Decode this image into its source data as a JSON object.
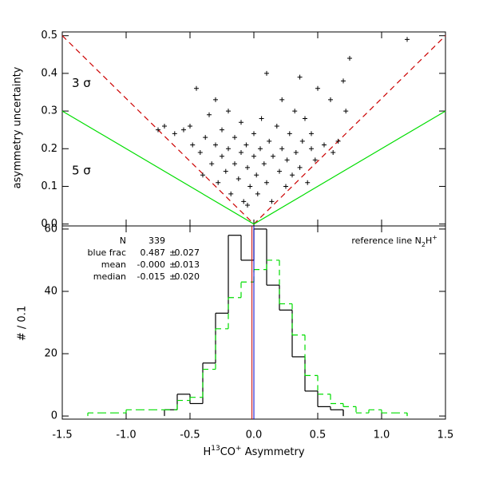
{
  "chart_data": [
    {
      "type": "scatter",
      "ylabel": "asymmetry uncertainty",
      "xlim": [
        -1.5,
        1.5
      ],
      "ylim": [
        -0.005,
        0.51
      ],
      "yticks": [
        {
          "value": 0,
          "label": "0.0"
        },
        0.1,
        0.2,
        0.3,
        0.4,
        0.5
      ],
      "series": [
        {
          "color": "#000000",
          "x": [
            -0.45,
            -0.5,
            -0.55,
            -0.48,
            -0.42,
            -0.4,
            -0.38,
            -0.35,
            -0.33,
            -0.3,
            -0.3,
            -0.28,
            -0.25,
            -0.25,
            -0.22,
            -0.2,
            -0.2,
            -0.18,
            -0.15,
            -0.15,
            -0.12,
            -0.1,
            -0.1,
            -0.08,
            -0.06,
            -0.05,
            -0.03,
            0,
            0,
            0.02,
            0.03,
            0.05,
            0.06,
            0.08,
            0.1,
            0.1,
            0.12,
            0.14,
            0.15,
            0.18,
            0.2,
            0.22,
            0.22,
            0.25,
            0.26,
            0.28,
            0.3,
            0.32,
            0.33,
            0.36,
            0.36,
            0.38,
            0.4,
            0.42,
            0.45,
            0.48,
            0.5,
            0.55,
            0.6,
            0.62,
            0.66,
            0.7,
            0.72,
            0.75,
            1.2,
            -0.7,
            -0.62,
            -0.75,
            0.45,
            -0.05
          ],
          "y": [
            0.36,
            0.26,
            0.25,
            0.21,
            0.19,
            0.13,
            0.23,
            0.29,
            0.16,
            0.33,
            0.21,
            0.11,
            0.25,
            0.18,
            0.14,
            0.3,
            0.2,
            0.08,
            0.23,
            0.16,
            0.12,
            0.27,
            0.19,
            0.06,
            0.21,
            0.15,
            0.1,
            0.24,
            0.18,
            0.13,
            0.08,
            0.2,
            0.28,
            0.16,
            0.4,
            0.11,
            0.22,
            0.06,
            0.18,
            0.26,
            0.14,
            0.33,
            0.2,
            0.1,
            0.17,
            0.24,
            0.13,
            0.3,
            0.19,
            0.39,
            0.15,
            0.22,
            0.28,
            0.11,
            0.2,
            0.17,
            0.36,
            0.21,
            0.33,
            0.19,
            0.22,
            0.38,
            0.3,
            0.44,
            0.49,
            0.26,
            0.24,
            0.25,
            0.24,
            0.05
          ]
        }
      ],
      "lines": [
        {
          "label": "3 σ",
          "color": "#cc0000",
          "dashed": true,
          "x": [
            -1.5,
            0,
            1.5
          ],
          "y": [
            0.5,
            0,
            0.5
          ]
        },
        {
          "label": "5 σ",
          "color": "#00dd00",
          "dashed": false,
          "x": [
            -1.5,
            0,
            1.5
          ],
          "y": [
            0.3,
            0,
            0.3
          ]
        }
      ]
    },
    {
      "type": "histogram",
      "xlabel": [
        "H",
        "13",
        "CO",
        "+",
        " Asymmetry"
      ],
      "ylabel": "# / 0.1",
      "xlim": [
        -1.5,
        1.5
      ],
      "ylim": [
        -1,
        61
      ],
      "xticks": [
        {
          "value": -1.5,
          "label": "-1.5"
        },
        {
          "value": -1,
          "label": "-1.0"
        },
        {
          "value": -0.5,
          "label": "-0.5"
        },
        {
          "value": 0,
          "label": "0.0"
        },
        {
          "value": 0.5,
          "label": "0.5"
        },
        {
          "value": 1,
          "label": "1.0"
        },
        {
          "value": 1.5,
          "label": "1.5"
        }
      ],
      "yticks": [
        0,
        20,
        40,
        60
      ],
      "bins": [
        -1.5,
        -1.4,
        -1.3,
        -1.2,
        -1.1,
        -1.0,
        -0.9,
        -0.8,
        -0.7,
        -0.6,
        -0.5,
        -0.4,
        -0.3,
        -0.2,
        -0.1,
        0,
        0.1,
        0.2,
        0.3,
        0.4,
        0.5,
        0.6,
        0.7,
        0.8,
        0.9,
        1.0,
        1.1,
        1.2,
        1.3,
        1.4,
        1.5
      ],
      "series": [
        {
          "color": "#000000",
          "dashed": false,
          "values": [
            0,
            0,
            0,
            0,
            0,
            0,
            0,
            0,
            2,
            7,
            4,
            17,
            33,
            58,
            50,
            60,
            42,
            34,
            19,
            8,
            3,
            2,
            0,
            0,
            0,
            0,
            0,
            0,
            0,
            0
          ]
        },
        {
          "color": "#00dd00",
          "dashed": true,
          "values": [
            0,
            0,
            1,
            1,
            1,
            2,
            2,
            2,
            2,
            5,
            6,
            15,
            28,
            38,
            43,
            47,
            50,
            36,
            26,
            13,
            7,
            4,
            3,
            1,
            2,
            1,
            1,
            0,
            0,
            0
          ]
        }
      ],
      "vlines": [
        {
          "x": 0,
          "color": "#000000"
        },
        {
          "x": 0,
          "color": "#0000cc"
        },
        {
          "x": -0.015,
          "color": "#cc0000"
        }
      ],
      "stats": [
        {
          "color": "#000000",
          "cells": [
            "N",
            "339"
          ]
        },
        {
          "color": "#000000",
          "cells": [
            "blue frac",
            "0.487",
            "±",
            "0.027"
          ]
        },
        {
          "color": "#0000cc",
          "cells": [
            "mean",
            "-0.000",
            "±",
            "0.013"
          ]
        },
        {
          "color": "#cc0000",
          "cells": [
            "median",
            "-0.015",
            "±",
            "0.020"
          ]
        }
      ],
      "reference": [
        "reference line N",
        "2",
        "H",
        "+"
      ]
    }
  ]
}
